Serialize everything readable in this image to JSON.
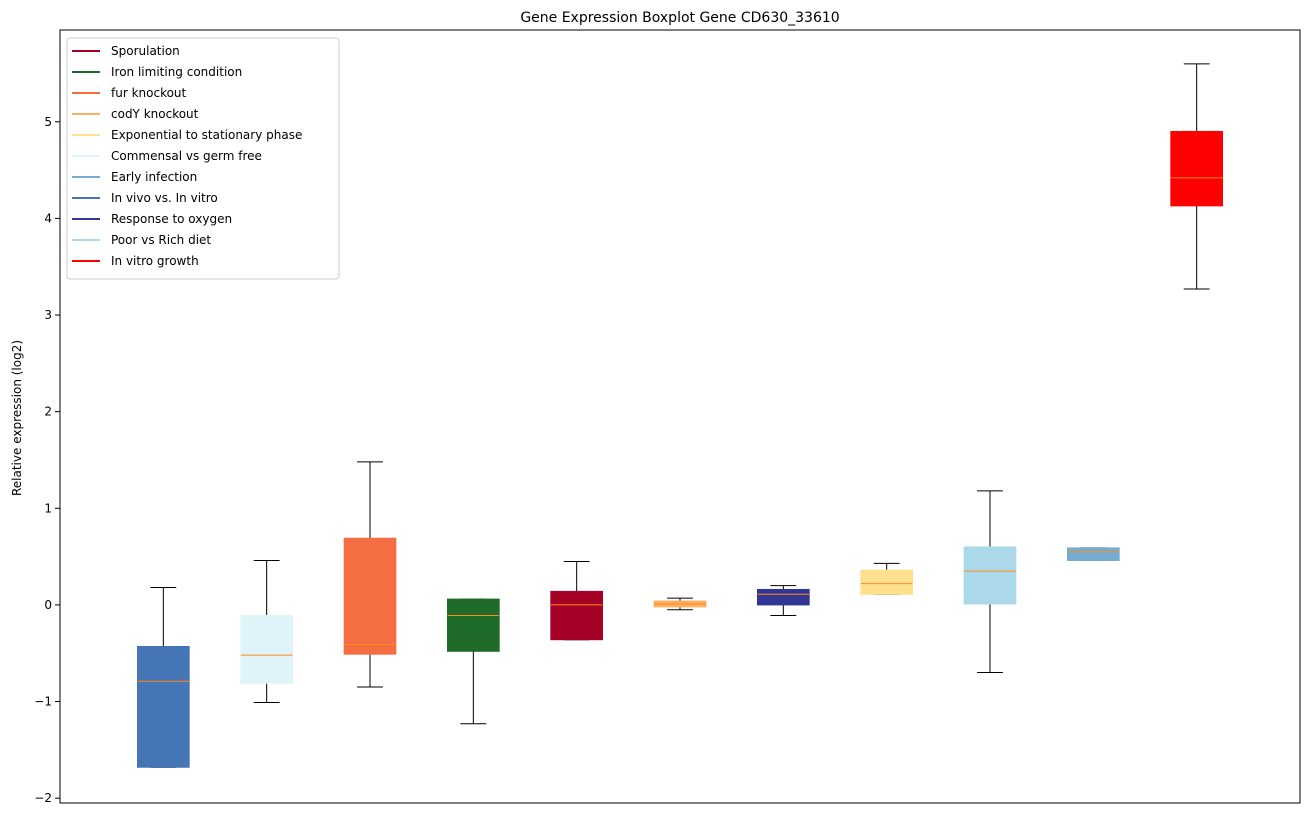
{
  "chart_data": {
    "type": "boxplot",
    "title": "Gene Expression Boxplot Gene CD630_33610",
    "xlabel": "",
    "ylabel": "Relative expression (log2)",
    "ylim": [
      -2.05,
      5.95
    ],
    "yticks": [
      -2,
      -1,
      0,
      1,
      2,
      3,
      4,
      5
    ],
    "ytick_labels": [
      "−2",
      "−1",
      "0",
      "1",
      "2",
      "3",
      "4",
      "5"
    ],
    "median_color": "#ff8c1a",
    "legend_position": "top-left",
    "legend": [
      {
        "label": "Sporulation",
        "color": "#a50026"
      },
      {
        "label": "Iron limiting condition",
        "color": "#1e6b2a"
      },
      {
        "label": "fur knockout",
        "color": "#f46d43"
      },
      {
        "label": "codY knockout",
        "color": "#fdae61"
      },
      {
        "label": "Exponential to stationary phase",
        "color": "#fee090"
      },
      {
        "label": "Commensal vs germ free",
        "color": "#e0f3f8"
      },
      {
        "label": "Early infection",
        "color": "#74add1"
      },
      {
        "label": "In vivo vs. In vitro",
        "color": "#4575b4"
      },
      {
        "label": "Response to oxygen",
        "color": "#313695"
      },
      {
        "label": "Poor vs Rich diet",
        "color": "#abd9e9"
      },
      {
        "label": "In vitro growth",
        "color": "#ff0000"
      }
    ],
    "boxes": [
      {
        "group": "In vivo vs. In vitro",
        "color": "#4575b4",
        "whislo": -1.68,
        "q1": -1.68,
        "med": -0.79,
        "q3": -0.43,
        "whishi": 0.18
      },
      {
        "group": "Commensal vs germ free",
        "color": "#e0f3f8",
        "whislo": -1.01,
        "q1": -0.81,
        "med": -0.52,
        "q3": -0.11,
        "whishi": 0.46
      },
      {
        "group": "fur knockout",
        "color": "#f46d43",
        "whislo": -0.85,
        "q1": -0.51,
        "med": -0.41,
        "q3": 0.69,
        "whishi": 1.48
      },
      {
        "group": "Iron limiting condition",
        "color": "#1e6b2a",
        "whislo": -1.23,
        "q1": -0.48,
        "med": -0.11,
        "q3": 0.06,
        "whishi": 0.06
      },
      {
        "group": "Sporulation",
        "color": "#a50026",
        "whislo": -0.36,
        "q1": -0.36,
        "med": 0.0,
        "q3": 0.14,
        "whishi": 0.45
      },
      {
        "group": "codY knockout",
        "color": "#fdae61",
        "whislo": -0.05,
        "q1": -0.02,
        "med": 0.01,
        "q3": 0.04,
        "whishi": 0.07
      },
      {
        "group": "Response to oxygen",
        "color": "#313695",
        "whislo": -0.11,
        "q1": 0.0,
        "med": 0.11,
        "q3": 0.16,
        "whishi": 0.2
      },
      {
        "group": "Exponential to stationary phase",
        "color": "#fee090",
        "whislo": 0.11,
        "q1": 0.11,
        "med": 0.22,
        "q3": 0.36,
        "whishi": 0.43
      },
      {
        "group": "Poor vs Rich diet",
        "color": "#abd9e9",
        "whislo": -0.7,
        "q1": 0.01,
        "med": 0.35,
        "q3": 0.6,
        "whishi": 1.18
      },
      {
        "group": "Early infection",
        "color": "#74add1",
        "whislo": 0.46,
        "q1": 0.46,
        "med": 0.55,
        "q3": 0.59,
        "whishi": 0.59
      },
      {
        "group": "In vitro growth",
        "color": "#ff0000",
        "whislo": 3.27,
        "q1": 4.13,
        "med": 4.42,
        "q3": 4.9,
        "whishi": 5.6
      }
    ]
  }
}
